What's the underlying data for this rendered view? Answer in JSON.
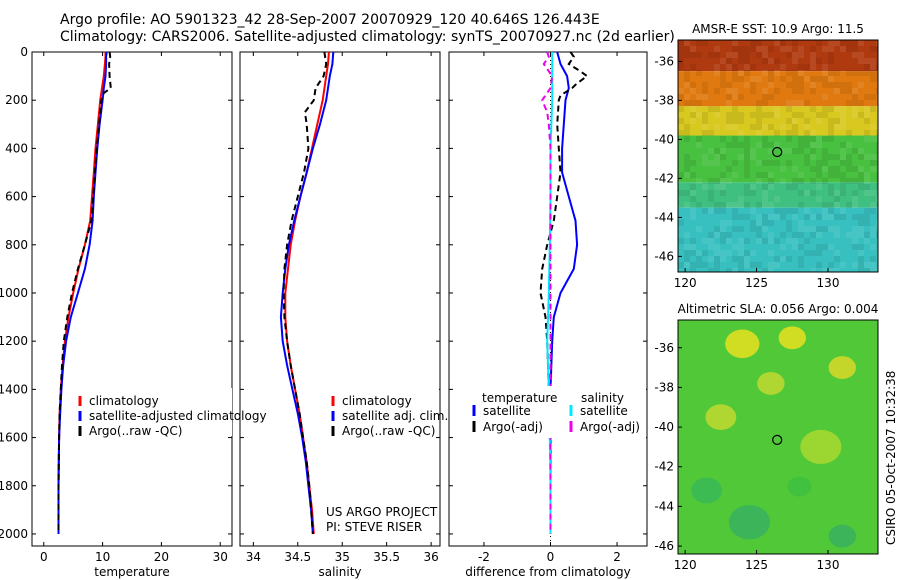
{
  "header": {
    "line1": "Argo profile: AO 5901323_42 28-Sep-2007 20070929_120 40.646S 126.443E",
    "line2": "Climatology: CARS2006. Satellite-adjusted climatology: synTS_20070927.nc (2d earlier)"
  },
  "credit": {
    "line1": "US ARGO PROJECT",
    "line2": "PI: STEVE RISER",
    "side_stamp": "CSIRO 05-Oct-2007 10:32:38"
  },
  "chart_data": [
    {
      "id": "temperature",
      "type": "line",
      "xlabel": "temperature",
      "xlim": [
        -2,
        32
      ],
      "xticks": [
        0,
        10,
        20,
        30
      ],
      "ylim": [
        2050,
        0
      ],
      "yticks": [
        0,
        200,
        400,
        600,
        800,
        1000,
        1200,
        1400,
        1600,
        1800,
        2000
      ],
      "series": [
        {
          "name": "climatology",
          "color": "#ff0000",
          "dash": "",
          "y": [
            0,
            20,
            50,
            100,
            150,
            200,
            300,
            400,
            500,
            600,
            700,
            800,
            900,
            1000,
            1100,
            1200,
            1300,
            1400,
            1500,
            1600,
            1800,
            2000
          ],
          "x": [
            10.5,
            10.5,
            10.4,
            10.2,
            9.9,
            9.6,
            9.2,
            8.8,
            8.5,
            8.2,
            7.9,
            7.0,
            5.9,
            5.0,
            4.2,
            3.6,
            3.2,
            2.9,
            2.7,
            2.6,
            2.5,
            2.5
          ]
        },
        {
          "name": "satellite-adjusted climatology",
          "color": "#0000ff",
          "dash": "",
          "y": [
            0,
            20,
            50,
            100,
            150,
            200,
            300,
            400,
            500,
            600,
            700,
            800,
            900,
            1000,
            1100,
            1200,
            1300,
            1400,
            1500,
            1600,
            1800,
            2000
          ],
          "x": [
            10.7,
            10.6,
            10.6,
            10.5,
            10.2,
            10.0,
            9.5,
            9.1,
            8.8,
            8.5,
            8.3,
            7.8,
            7.0,
            5.8,
            4.6,
            3.8,
            3.3,
            3.0,
            2.8,
            2.6,
            2.5,
            2.5
          ]
        },
        {
          "name": "Argo(..raw -QC)",
          "color": "#000000",
          "dash": "6,4",
          "y": [
            0,
            20,
            50,
            100,
            150,
            170,
            200,
            300,
            400,
            500,
            600,
            700,
            800,
            900,
            1000,
            1100,
            1200,
            1300,
            1400,
            1500,
            1600,
            1800,
            2000
          ],
          "x": [
            11.2,
            11.3,
            11.1,
            11.2,
            11.4,
            10.2,
            9.8,
            9.4,
            9.0,
            8.7,
            8.4,
            8.1,
            7.0,
            5.8,
            4.8,
            4.0,
            3.4,
            3.1,
            2.9,
            2.7,
            2.6,
            2.5,
            2.5
          ]
        }
      ],
      "legend": {
        "position": "bottom-right",
        "entries": [
          "climatology",
          "satellite-adjusted climatology",
          "Argo(..raw -QC)"
        ]
      }
    },
    {
      "id": "salinity",
      "type": "line",
      "xlabel": "salinity",
      "xlim": [
        33.85,
        36.1
      ],
      "xticks": [
        34,
        34.5,
        35,
        35.5,
        36
      ],
      "ylim": [
        2050,
        0
      ],
      "yticks": [
        0,
        200,
        400,
        600,
        800,
        1000,
        1200,
        1400,
        1600,
        1800,
        2000
      ],
      "series": [
        {
          "name": "climatology",
          "color": "#ff0000",
          "dash": "",
          "y": [
            0,
            50,
            100,
            200,
            300,
            400,
            500,
            600,
            700,
            800,
            900,
            1000,
            1100,
            1200,
            1300,
            1400,
            1500,
            1600,
            1700,
            1800,
            1900,
            2000
          ],
          "x": [
            34.85,
            34.84,
            34.82,
            34.78,
            34.72,
            34.66,
            34.6,
            34.53,
            34.47,
            34.42,
            34.39,
            34.36,
            34.36,
            34.38,
            34.42,
            34.47,
            34.52,
            34.56,
            34.6,
            34.63,
            34.66,
            34.68
          ]
        },
        {
          "name": "satellite adj. clim.",
          "color": "#0000ff",
          "dash": "",
          "y": [
            0,
            50,
            100,
            200,
            300,
            400,
            500,
            600,
            700,
            800,
            900,
            1000,
            1100,
            1200,
            1300,
            1400,
            1500,
            1600,
            1700,
            1800,
            1900,
            2000
          ],
          "x": [
            34.9,
            34.89,
            34.86,
            34.82,
            34.75,
            34.67,
            34.6,
            34.53,
            34.46,
            34.4,
            34.36,
            34.33,
            34.31,
            34.33,
            34.38,
            34.44,
            34.5,
            34.55,
            34.59,
            34.62,
            34.65,
            34.67
          ]
        },
        {
          "name": "Argo(..raw -QC)",
          "color": "#000000",
          "dash": "6,4",
          "y": [
            0,
            50,
            100,
            150,
            200,
            250,
            300,
            400,
            500,
            600,
            700,
            800,
            900,
            1000,
            1100,
            1200,
            1300,
            1400,
            1500,
            1600,
            1700,
            1800,
            1900,
            2000
          ],
          "x": [
            34.8,
            34.82,
            34.79,
            34.7,
            34.68,
            34.58,
            34.6,
            34.62,
            34.57,
            34.5,
            34.43,
            34.38,
            34.35,
            34.34,
            34.35,
            34.38,
            34.42,
            34.47,
            34.52,
            34.56,
            34.6,
            34.63,
            34.65,
            34.67
          ]
        }
      ],
      "legend": {
        "position": "bottom-right",
        "entries": [
          "climatology",
          "satellite adj. clim.",
          "Argo(..raw -QC)"
        ]
      }
    },
    {
      "id": "difference",
      "type": "line",
      "xlabel": "difference from climatology",
      "xlim": [
        -3.05,
        2.9
      ],
      "xticks": [
        -2,
        0,
        2
      ],
      "ylim": [
        2050,
        0
      ],
      "yticks": [
        0,
        200,
        400,
        600,
        800,
        1000,
        1200,
        1400,
        1600,
        1800,
        2000
      ],
      "series": [
        {
          "name": "temperature satellite",
          "color": "#0000ff",
          "dash": "",
          "y": [
            0,
            50,
            100,
            150,
            200,
            300,
            400,
            500,
            600,
            700,
            800,
            900,
            1000,
            1100,
            1200,
            1400,
            1600,
            1800,
            2000
          ],
          "x": [
            0.2,
            0.3,
            0.5,
            0.55,
            0.45,
            0.4,
            0.35,
            0.35,
            0.55,
            0.75,
            0.8,
            0.7,
            0.3,
            0.1,
            0.05,
            0.0,
            0.0,
            0.0,
            0.0
          ]
        },
        {
          "name": "temperature Argo(-adj)",
          "color": "#000000",
          "dash": "6,4",
          "y": [
            0,
            20,
            50,
            80,
            100,
            130,
            150,
            180,
            200,
            300,
            400,
            500,
            600,
            700,
            800,
            900,
            1000,
            1100,
            1200,
            1400,
            1600,
            1800,
            2000
          ],
          "x": [
            0.6,
            0.7,
            0.55,
            0.9,
            1.1,
            0.8,
            0.65,
            0.3,
            0.25,
            0.2,
            0.25,
            0.3,
            0.2,
            0.1,
            -0.1,
            -0.25,
            -0.3,
            -0.15,
            -0.1,
            -0.05,
            0.0,
            0.0,
            0.0
          ]
        },
        {
          "name": "salinity satellite",
          "color": "#00e8ff",
          "dash": "",
          "y": [
            0,
            100,
            200,
            400,
            600,
            800,
            1000,
            1200,
            1400,
            1600,
            1800,
            2000
          ],
          "x": [
            0.05,
            0.05,
            0.05,
            0.0,
            0.0,
            -0.02,
            -0.05,
            -0.1,
            -0.05,
            -0.02,
            0.0,
            0.0
          ]
        },
        {
          "name": "salinity Argo(-adj)",
          "color": "#ee00ee",
          "dash": "6,4",
          "y": [
            0,
            20,
            50,
            100,
            150,
            200,
            250,
            300,
            400,
            600,
            800,
            1000,
            1200,
            1400,
            1600,
            1800,
            2000
          ],
          "x": [
            -0.1,
            -0.05,
            -0.2,
            0.05,
            0.0,
            -0.25,
            -0.1,
            -0.05,
            0.0,
            0.0,
            0.0,
            0.0,
            0.0,
            0.0,
            0.0,
            0.0,
            0.0
          ]
        }
      ],
      "legend": {
        "position": "bottom-center",
        "groups": [
          {
            "title": "temperature",
            "entries": [
              "satellite",
              "Argo(-adj)"
            ]
          },
          {
            "title": "salinity",
            "entries": [
              "satellite",
              "Argo(-adj)"
            ]
          }
        ]
      }
    },
    {
      "id": "sst_map",
      "type": "heatmap",
      "title": "AMSR-E SST: 10.9 Argo: 11.5",
      "xlim": [
        119.5,
        133.5
      ],
      "xticks": [
        120,
        125,
        130
      ],
      "ylim": [
        -46.8,
        -34.9
      ],
      "yticks": [
        -36,
        -38,
        -40,
        -42,
        -44,
        -46
      ],
      "marker": {
        "lon": 126.443,
        "lat": -40.646
      },
      "bands": [
        {
          "lat_from": -34.9,
          "lat_to": -36.5,
          "color": "#b03a10"
        },
        {
          "lat_from": -36.5,
          "lat_to": -38.3,
          "color": "#e07a10"
        },
        {
          "lat_from": -38.3,
          "lat_to": -39.8,
          "color": "#d8c820"
        },
        {
          "lat_from": -39.8,
          "lat_to": -42.2,
          "color": "#48c040"
        },
        {
          "lat_from": -42.2,
          "lat_to": -43.5,
          "color": "#40c080"
        },
        {
          "lat_from": -43.5,
          "lat_to": -46.8,
          "color": "#38c0c0"
        }
      ]
    },
    {
      "id": "sla_map",
      "type": "heatmap",
      "title": "Altimetric SLA: 0.056 Argo: 0.004",
      "xlim": [
        119.5,
        133.5
      ],
      "xticks": [
        120,
        125,
        130
      ],
      "ylim": [
        -46.4,
        -34.6
      ],
      "yticks": [
        -36,
        -38,
        -40,
        -42,
        -44,
        -46
      ],
      "marker": {
        "lon": 126.443,
        "lat": -40.646
      },
      "background": "#50c838",
      "blobs": [
        {
          "lon": 124.0,
          "lat": -35.8,
          "r": 1.0,
          "color": "#e8e020"
        },
        {
          "lon": 127.5,
          "lat": -35.5,
          "r": 0.8,
          "color": "#e8e020"
        },
        {
          "lon": 122.5,
          "lat": -39.5,
          "r": 0.9,
          "color": "#c0d830"
        },
        {
          "lon": 126.0,
          "lat": -37.8,
          "r": 0.8,
          "color": "#c0d830"
        },
        {
          "lon": 131.0,
          "lat": -37.0,
          "r": 0.8,
          "color": "#d8d828"
        },
        {
          "lon": 129.5,
          "lat": -41.0,
          "r": 1.2,
          "color": "#a8d830"
        },
        {
          "lon": 121.5,
          "lat": -43.2,
          "r": 0.9,
          "color": "#38b858"
        },
        {
          "lon": 124.5,
          "lat": -44.8,
          "r": 1.2,
          "color": "#38b060"
        },
        {
          "lon": 131.0,
          "lat": -45.5,
          "r": 0.8,
          "color": "#38b060"
        },
        {
          "lon": 128.0,
          "lat": -43.0,
          "r": 0.7,
          "color": "#40c040"
        }
      ]
    }
  ]
}
